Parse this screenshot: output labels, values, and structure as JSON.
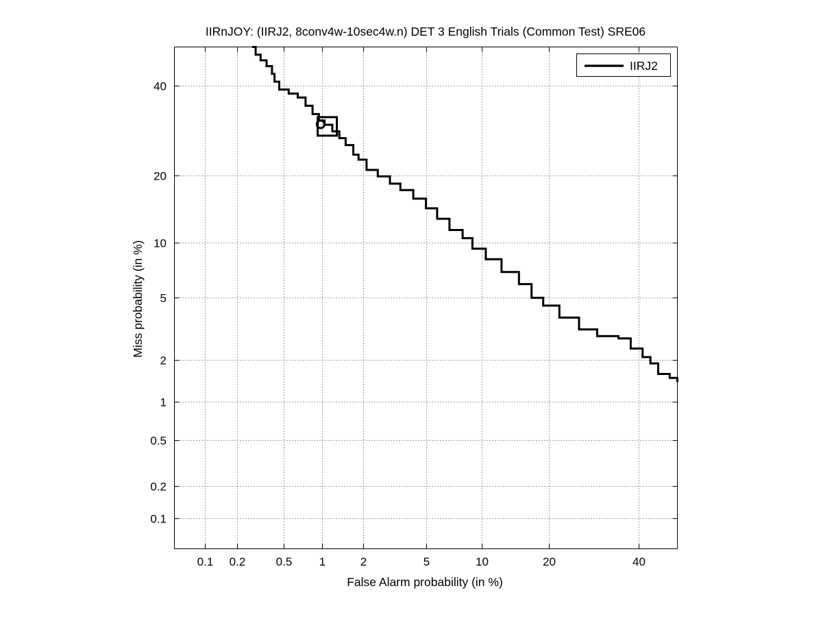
{
  "chart_data": {
    "type": "line",
    "title": "IIRnJOY: (IIRJ2, 8conv4w-10sec4w.n) DET 3 English Trials (Common Test) SRE06",
    "xlabel": "False Alarm probability (in %)",
    "ylabel": "Miss probability (in %)",
    "x_scale": "normal-deviate (probit)",
    "y_scale": "normal-deviate (probit)",
    "xlim": [
      0.05,
      50
    ],
    "ylim": [
      0.05,
      50
    ],
    "x_ticks": [
      0.1,
      0.2,
      0.5,
      1,
      2,
      5,
      10,
      20,
      40
    ],
    "x_tick_labels": [
      "0.1",
      "0.2",
      "0.5",
      "1",
      "2",
      "5",
      "10",
      "20",
      "40"
    ],
    "y_ticks": [
      0.1,
      0.2,
      0.5,
      1,
      2,
      5,
      10,
      20,
      40
    ],
    "y_tick_labels": [
      "0.1",
      "0.2",
      "0.5",
      "1",
      "2",
      "5",
      "10",
      "20",
      "40"
    ],
    "grid": true,
    "legend_position": "top-right",
    "series": [
      {
        "name": "IIRJ2",
        "color": "#000000",
        "points": [
          [
            0.27,
            50
          ],
          [
            0.29,
            48
          ],
          [
            0.32,
            46.5
          ],
          [
            0.36,
            45
          ],
          [
            0.4,
            43
          ],
          [
            0.42,
            41
          ],
          [
            0.46,
            39
          ],
          [
            0.55,
            38
          ],
          [
            0.65,
            37
          ],
          [
            0.75,
            35
          ],
          [
            0.85,
            33
          ],
          [
            0.95,
            31.5
          ],
          [
            1.05,
            30.5
          ],
          [
            1.2,
            29
          ],
          [
            1.35,
            27.5
          ],
          [
            1.5,
            26
          ],
          [
            1.7,
            24
          ],
          [
            1.85,
            23
          ],
          [
            2.1,
            21
          ],
          [
            2.5,
            19.8
          ],
          [
            3.0,
            18.5
          ],
          [
            3.5,
            17.4
          ],
          [
            4.2,
            16
          ],
          [
            5.0,
            14.5
          ],
          [
            5.8,
            13
          ],
          [
            6.8,
            11.5
          ],
          [
            8.0,
            10.5
          ],
          [
            9.0,
            9.3
          ],
          [
            10.5,
            8.2
          ],
          [
            12.5,
            7
          ],
          [
            15.0,
            6
          ],
          [
            17.0,
            5
          ],
          [
            19.0,
            4.5
          ],
          [
            22.0,
            3.8
          ],
          [
            26.0,
            3.2
          ],
          [
            30.0,
            2.9
          ],
          [
            35.0,
            2.8
          ],
          [
            38.0,
            2.4
          ],
          [
            41.0,
            2.1
          ],
          [
            43.0,
            1.9
          ],
          [
            45.0,
            1.6
          ],
          [
            48.0,
            1.5
          ],
          [
            50.0,
            1.4
          ]
        ]
      }
    ],
    "markers": [
      {
        "shape": "square",
        "x": 1.1,
        "y": 30.2
      },
      {
        "shape": "circle",
        "x": 0.98,
        "y": 30.6
      }
    ]
  }
}
